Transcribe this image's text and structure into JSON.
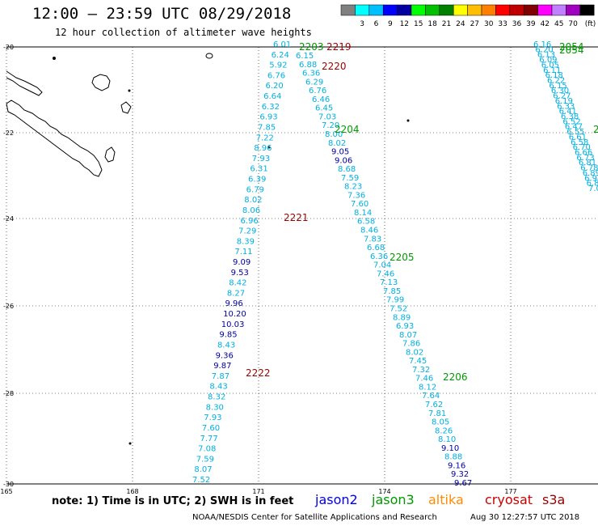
{
  "header": {
    "title": "12:00 – 23:59 UTC 08/29/2018",
    "subtitle": "12 hour collection of altimeter wave heights"
  },
  "colorbar": {
    "colors": [
      "#808080",
      "#00ffff",
      "#00bfff",
      "#0000ff",
      "#0000a0",
      "#00ff00",
      "#00c000",
      "#008000",
      "#ffff00",
      "#ffbf00",
      "#ff8000",
      "#ff0000",
      "#c00000",
      "#800000",
      "#ff00ff",
      "#c080ff",
      "#a000c0",
      "#000000"
    ],
    "ticks": [
      "3",
      "6",
      "9",
      "12",
      "15",
      "18",
      "21",
      "24",
      "27",
      "30",
      "33",
      "36",
      "39",
      "42",
      "45",
      "70"
    ],
    "unit": "(ft)"
  },
  "map": {
    "lon_ticks": [
      "165",
      "168",
      "171",
      "174",
      "177"
    ],
    "lat_ticks": [
      "-20",
      "-22",
      "-24",
      "-26",
      "-28",
      "-30"
    ]
  },
  "legend": {
    "note": "note: 1) Time is in UTC; 2) SWH is in feet",
    "missions": [
      {
        "name": "jason2",
        "color": "#0000ee"
      },
      {
        "name": "jason3",
        "color": "#009900"
      },
      {
        "name": "altika",
        "color": "#ff8c00"
      },
      {
        "name": "cryosat",
        "color": "#cc0000"
      },
      {
        "name": "s3a",
        "color": "#990000"
      }
    ]
  },
  "footer": {
    "credit": "NOAA/NESDIS Center for Satellite Applications and Research",
    "timestamp": "Aug 30 12:27:57 UTC 2018"
  },
  "tracks": {
    "west": [
      "6.01",
      "6.24",
      "5.92",
      "6.76",
      "6.20",
      "6.64",
      "6.32",
      "6.93",
      "7.85",
      "7.22",
      "8.96",
      "7.93",
      "6.31",
      "6.39",
      "6.79",
      "8.02",
      "8.06",
      "6.96",
      "7.29",
      "8.39",
      "7.11",
      "9.09",
      "9.53",
      "8.42",
      "8.27",
      "9.96",
      "10.20",
      "10.03",
      "9.85",
      "8.43",
      "9.36",
      "9.87",
      "7.87",
      "8.43",
      "8.32",
      "8.30",
      "7.93",
      "7.60",
      "7.77",
      "7.08",
      "7.59",
      "8.07",
      "7.52"
    ],
    "east": [
      "6.15",
      "6.88",
      "6.36",
      "6.29",
      "6.76",
      "6.46",
      "6.45",
      "7.03",
      "7.20",
      "8.00",
      "8.02",
      "9.05",
      "9.06",
      "8.68",
      "7.59",
      "8.23",
      "7.36",
      "7.60",
      "8.14",
      "6.58",
      "8.46",
      "7.83",
      "6.68",
      "6.36",
      "7.04",
      "7.46",
      "7.13",
      "7.85",
      "7.99",
      "7.52",
      "8.89",
      "6.93",
      "8.07",
      "7.86",
      "8.02",
      "7.45",
      "7.32",
      "7.46",
      "8.12",
      "7.64",
      "7.62",
      "7.81",
      "8.05",
      "8.26",
      "8.10",
      "9.10",
      "8.88",
      "9.16",
      "9.32",
      "9.67"
    ],
    "far_east": [
      "6.16",
      "6.20",
      "6.13",
      "6.09",
      "6.05",
      "6.11",
      "6.18",
      "6.22",
      "6.15",
      "6.30",
      "6.27",
      "6.19",
      "6.33",
      "6.41",
      "6.38",
      "6.52",
      "6.47",
      "6.55",
      "6.61",
      "6.58",
      "6.70",
      "6.66",
      "6.73",
      "6.81",
      "6.78",
      "6.89",
      "6.94",
      "6.87",
      "7.02"
    ]
  },
  "track_labels": [
    {
      "text": "2203",
      "color": "#009900"
    },
    {
      "text": "2219",
      "color": "#990000"
    },
    {
      "text": "2220",
      "color": "#990000"
    },
    {
      "text": "2204",
      "color": "#009900"
    },
    {
      "text": "2221",
      "color": "#990000"
    },
    {
      "text": "2205",
      "color": "#009900"
    },
    {
      "text": "2222",
      "color": "#990000"
    },
    {
      "text": "2206",
      "color": "#009900"
    },
    {
      "text": "2054",
      "color": "#009900"
    },
    {
      "text": "2054",
      "color": "#009900"
    },
    {
      "text": "2",
      "color": "#009900"
    }
  ]
}
